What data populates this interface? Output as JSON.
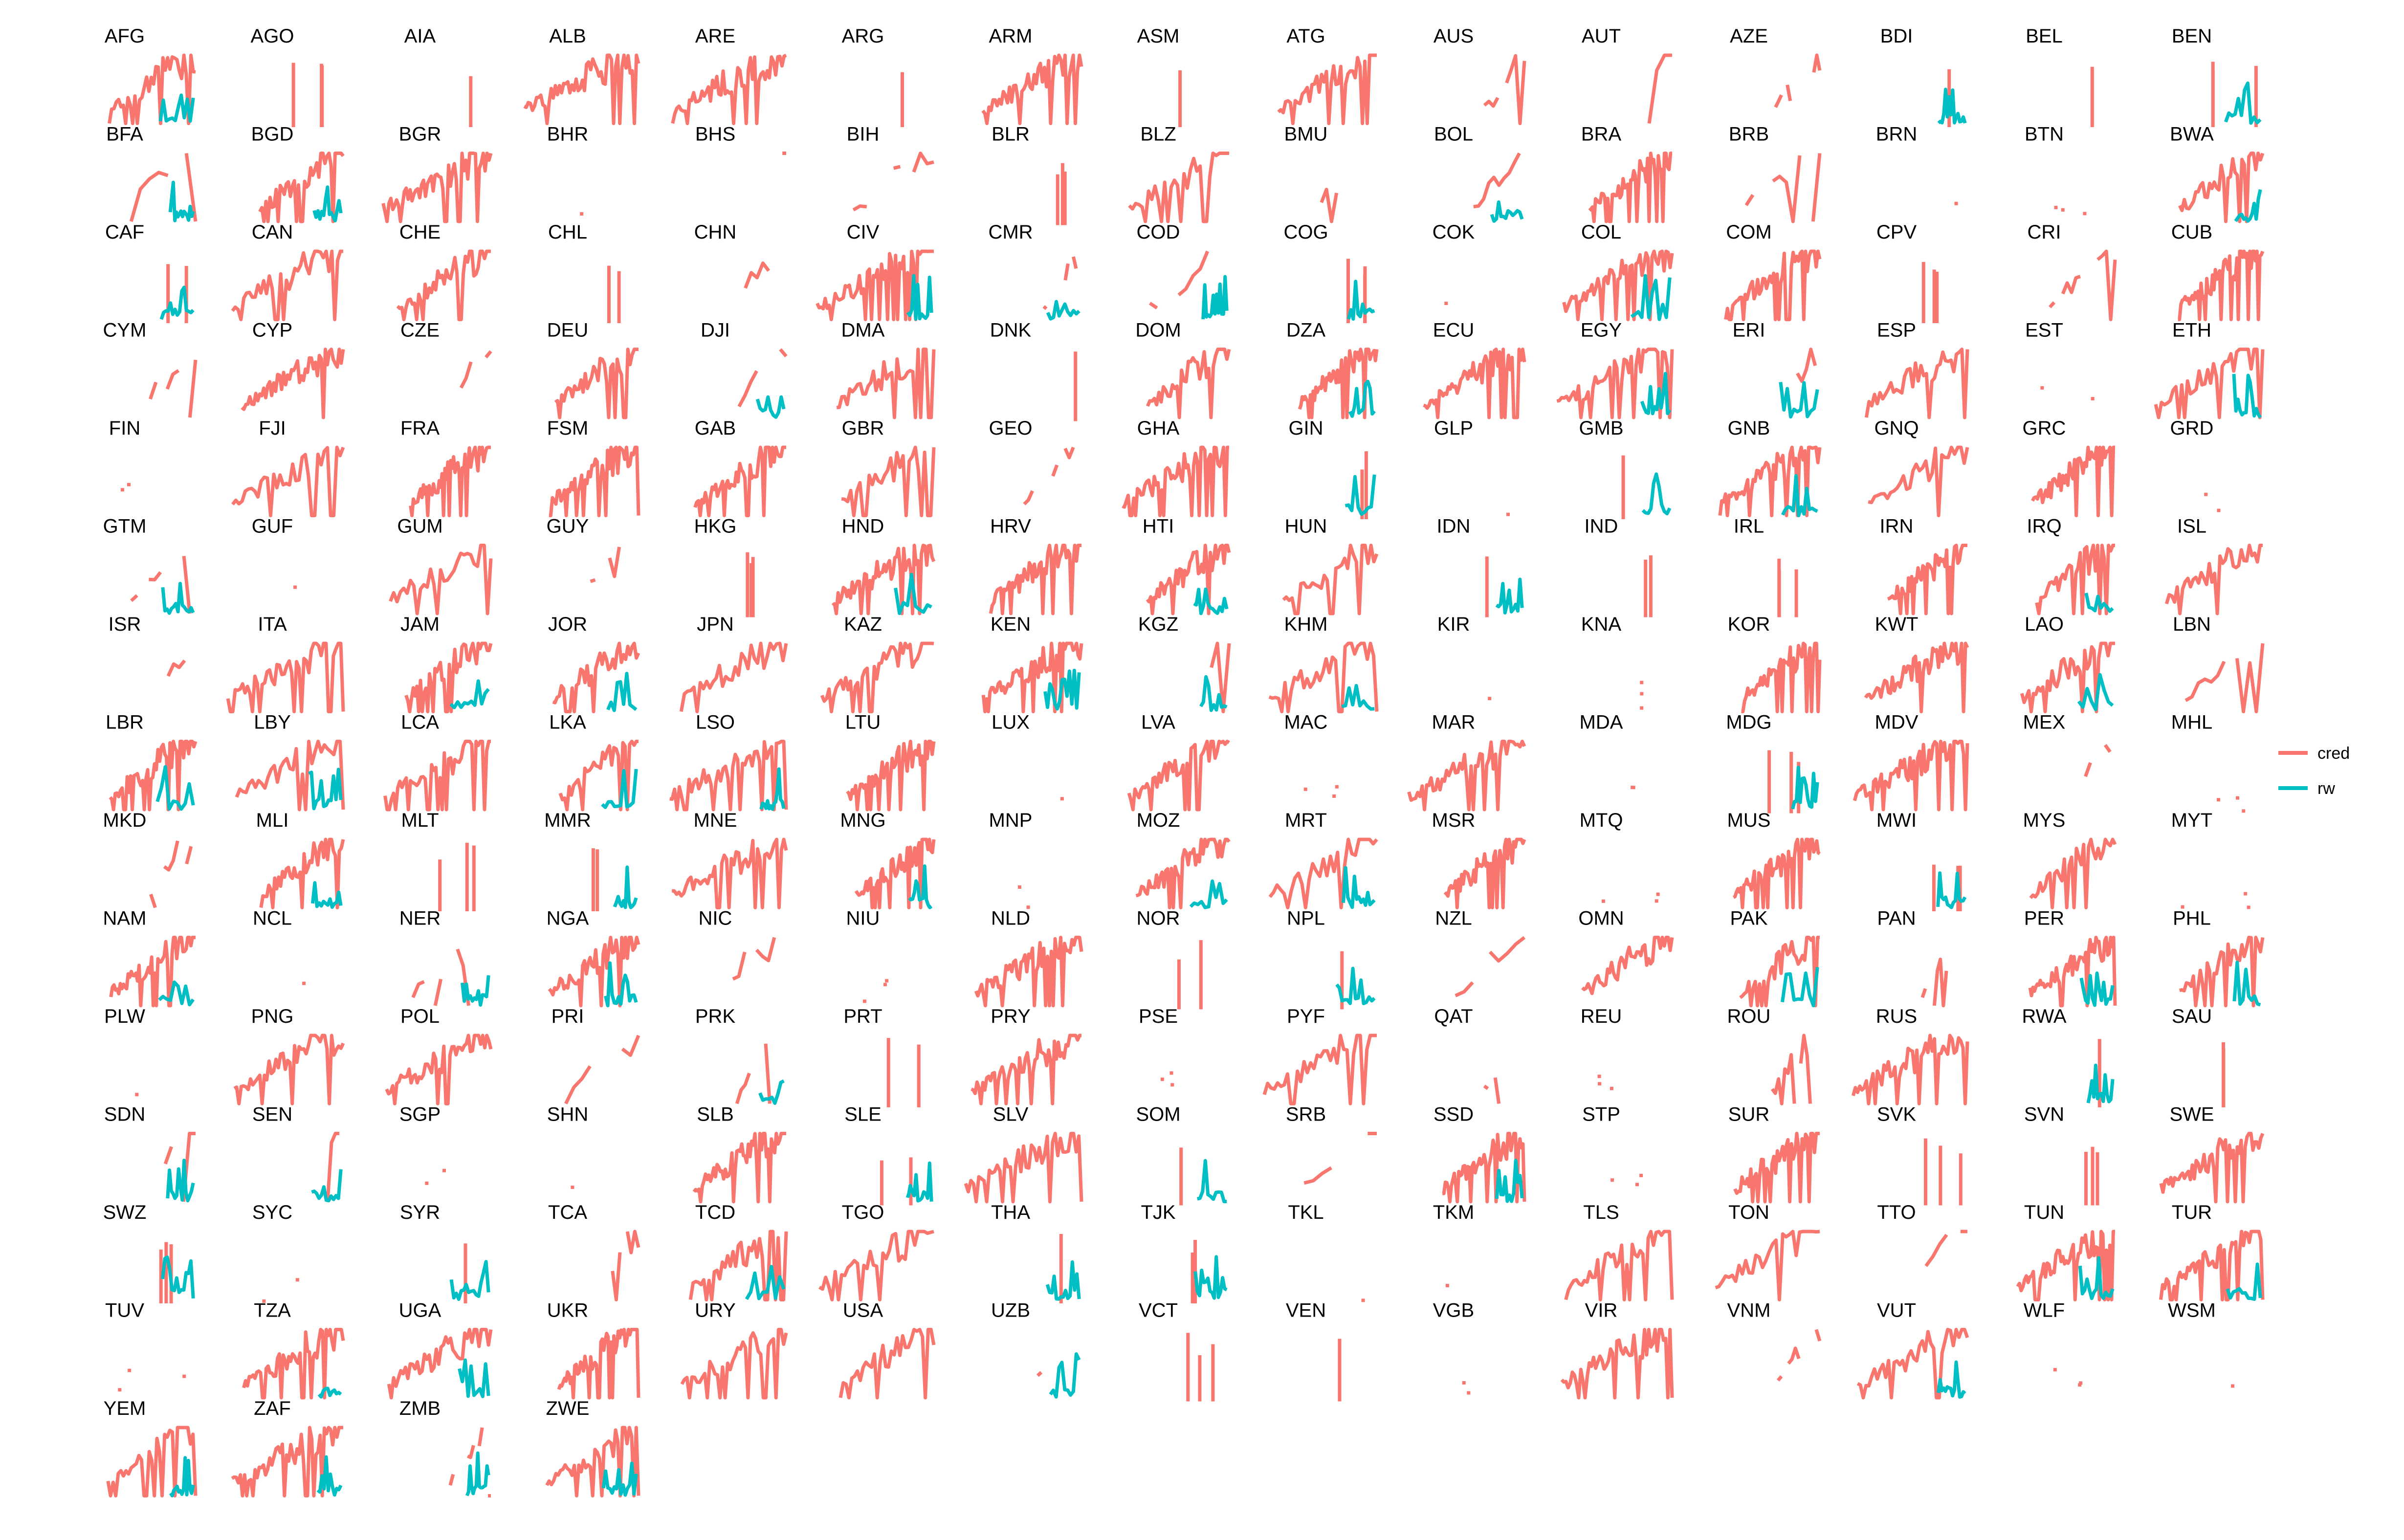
{
  "chart_data": {
    "type": "line",
    "title": "",
    "xlabel": "",
    "ylabel": "",
    "grid": false,
    "legend_position": "right",
    "colors": {
      "cred": "#F8766D",
      "rw": "#00BFC4"
    },
    "series_names": [
      "cred",
      "rw"
    ],
    "panels": [
      "AFG",
      "AGO",
      "AIA",
      "ALB",
      "ARE",
      "ARG",
      "ARM",
      "ASM",
      "ATG",
      "AUS",
      "AUT",
      "AZE",
      "BDI",
      "BEL",
      "BEN",
      "BFA",
      "BGD",
      "BGR",
      "BHR",
      "BHS",
      "BIH",
      "BLR",
      "BLZ",
      "BMU",
      "BOL",
      "BRA",
      "BRB",
      "BRN",
      "BTN",
      "BWA",
      "CAF",
      "CAN",
      "CHE",
      "CHL",
      "CHN",
      "CIV",
      "CMR",
      "COD",
      "COG",
      "COK",
      "COL",
      "COM",
      "CPV",
      "CRI",
      "CUB",
      "CYM",
      "CYP",
      "CZE",
      "DEU",
      "DJI",
      "DMA",
      "DNK",
      "DOM",
      "DZA",
      "ECU",
      "EGY",
      "ERI",
      "ESP",
      "EST",
      "ETH",
      "FIN",
      "FJI",
      "FRA",
      "FSM",
      "GAB",
      "GBR",
      "GEO",
      "GHA",
      "GIN",
      "GLP",
      "GMB",
      "GNB",
      "GNQ",
      "GRC",
      "GRD",
      "GTM",
      "GUF",
      "GUM",
      "GUY",
      "HKG",
      "HND",
      "HRV",
      "HTI",
      "HUN",
      "IDN",
      "IND",
      "IRL",
      "IRN",
      "IRQ",
      "ISL",
      "ISR",
      "ITA",
      "JAM",
      "JOR",
      "JPN",
      "KAZ",
      "KEN",
      "KGZ",
      "KHM",
      "KIR",
      "KNA",
      "KOR",
      "KWT",
      "LAO",
      "LBN",
      "LBR",
      "LBY",
      "LCA",
      "LKA",
      "LSO",
      "LTU",
      "LUX",
      "LVA",
      "MAC",
      "MAR",
      "MDA",
      "MDG",
      "MDV",
      "MEX",
      "MHL",
      "MKD",
      "MLI",
      "MLT",
      "MMR",
      "MNE",
      "MNG",
      "MNP",
      "MOZ",
      "MRT",
      "MSR",
      "MTQ",
      "MUS",
      "MWI",
      "MYS",
      "MYT",
      "NAM",
      "NCL",
      "NER",
      "NGA",
      "NIC",
      "NIU",
      "NLD",
      "NOR",
      "NPL",
      "NZL",
      "OMN",
      "PAK",
      "PAN",
      "PER",
      "PHL",
      "PLW",
      "PNG",
      "POL",
      "PRI",
      "PRK",
      "PRT",
      "PRY",
      "PSE",
      "PYF",
      "QAT",
      "REU",
      "ROU",
      "RUS",
      "RWA",
      "SAU",
      "SDN",
      "SEN",
      "SGP",
      "SHN",
      "SLB",
      "SLE",
      "SLV",
      "SOM",
      "SRB",
      "SSD",
      "STP",
      "SUR",
      "SVK",
      "SVN",
      "SWE",
      "SWZ",
      "SYC",
      "SYR",
      "TCA",
      "TCD",
      "TGO",
      "THA",
      "TJK",
      "TKL",
      "TKM",
      "TLS",
      "TON",
      "TTO",
      "TUN",
      "TUR",
      "TUV",
      "TZA",
      "UGA",
      "UKR",
      "URY",
      "USA",
      "UZB",
      "VCT",
      "VEN",
      "VGB",
      "VIR",
      "VNM",
      "VUT",
      "WLF",
      "WSM",
      "YEM",
      "ZAF",
      "ZMB",
      "ZWE"
    ],
    "panels_with_rw": [
      "AFG",
      "BDI",
      "BEN",
      "BFA",
      "BGD",
      "BOL",
      "BWA",
      "CAF",
      "CIV",
      "CMR",
      "COD",
      "COG",
      "COL",
      "DJI",
      "DZA",
      "EGY",
      "ERI",
      "ETH",
      "GIN",
      "GMB",
      "GNB",
      "GTM",
      "HND",
      "HTI",
      "IDN",
      "IRQ",
      "JAM",
      "JOR",
      "KEN",
      "KGZ",
      "KHM",
      "LAO",
      "LBR",
      "LBY",
      "LKA",
      "LSO",
      "MDG",
      "MLI",
      "MMR",
      "MNG",
      "MOZ",
      "MRT",
      "MWI",
      "NAM",
      "NER",
      "NGA",
      "NPL",
      "PAK",
      "PER",
      "PHL",
      "PRK",
      "RWA",
      "SDN",
      "SEN",
      "SLE",
      "SOM",
      "SSD",
      "SWZ",
      "SYR",
      "TCD",
      "THA",
      "TJK",
      "TUN",
      "TUR",
      "TZA",
      "UGA",
      "UZB",
      "VUT",
      "YEM",
      "ZAF",
      "ZMB",
      "ZWE"
    ],
    "panels_empty": [
      "BHR",
      "BRN",
      "BTN",
      "COK",
      "EST",
      "FIN",
      "GLP",
      "GRD",
      "GUF",
      "KIR",
      "KNA",
      "LUX",
      "MAC",
      "MHL",
      "MNP",
      "MTQ",
      "MYT",
      "NCL",
      "NIU",
      "PLW",
      "PSE",
      "REU",
      "SGP",
      "SHN",
      "STP",
      "SYC",
      "TKL",
      "TKM",
      "TUV",
      "VGB",
      "WLF",
      "WSM"
    ]
  }
}
